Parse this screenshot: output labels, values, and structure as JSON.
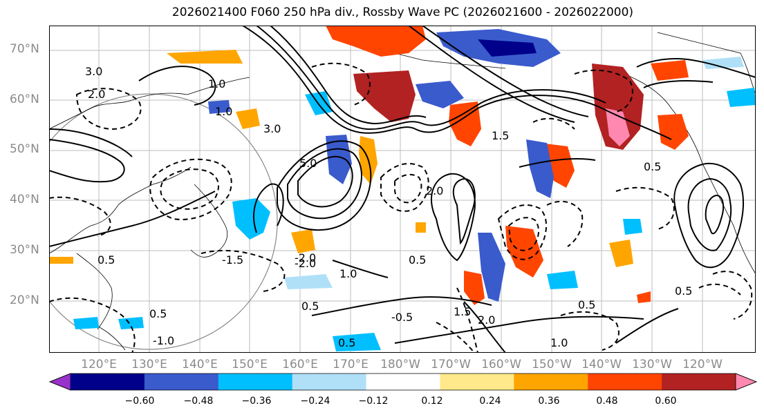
{
  "title": "2026021400 F060 250 hPa div., Rossby Wave PC (2026021600 - 2026022000)",
  "lat_labels": [
    "70°N",
    "60°N",
    "50°N",
    "40°N",
    "30°N",
    "20°N"
  ],
  "lon_labels": [
    "120°E",
    "130°E",
    "140°E",
    "150°E",
    "160°E",
    "170°E",
    "180°W",
    "170°W",
    "160°W",
    "150°W",
    "140°W",
    "130°W",
    "120°W"
  ],
  "colorbar": {
    "ticks": [
      "−0.60",
      "−0.48",
      "−0.36",
      "−0.24",
      "−0.12",
      "0.12",
      "0.24",
      "0.36",
      "0.48",
      "0.60"
    ],
    "colors": [
      "#9932cc",
      "#00008b",
      "#3a5bcc",
      "#00bfff",
      "#b0e0f8",
      "#ffffff",
      "#ffe98a",
      "#ffa500",
      "#ff4500",
      "#b22222",
      "#ff88b0"
    ]
  },
  "contour_labels": [
    "3.0",
    "2.0",
    "1.0",
    "0.5",
    "-1.5",
    "-2.0",
    "5.0",
    "3.0",
    "1.0",
    "1.5",
    "2.0",
    "0.5",
    "0.5",
    "0.5",
    "1.0",
    "-2.0",
    "0.5",
    "1.5",
    "-1.0",
    "0.5",
    "1.0",
    "2.0",
    "-0.5",
    "0.5",
    "0.5"
  ]
}
